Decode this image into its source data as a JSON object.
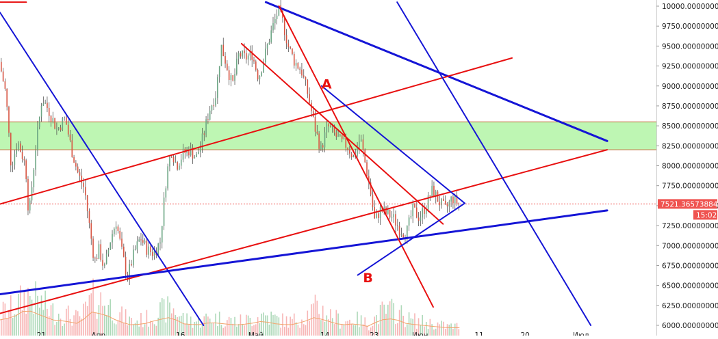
{
  "chart_data": {
    "type": "candlestick",
    "title": "",
    "xlabel": "",
    "ylabel": "",
    "ylim": [
      6000,
      10050
    ],
    "y_ticks": [
      "10000.00000000",
      "9750.00000000",
      "9500.00000000",
      "9250.00000000",
      "9000.00000000",
      "8750.00000000",
      "8500.00000000",
      "8250.00000000",
      "8000.00000000",
      "7750.00000000",
      "7500.00000000",
      "7250.00000000",
      "7000.00000000",
      "6750.00000000",
      "6500.00000000",
      "6250.00000000",
      "6000.00000000"
    ],
    "y_tick_values": [
      10000,
      9750,
      9500,
      9250,
      9000,
      8750,
      8500,
      8250,
      8000,
      7750,
      7500,
      7250,
      7000,
      6750,
      6500,
      6250,
      6000
    ],
    "x_ticks": [
      {
        "label": "21",
        "x": 0.063
      },
      {
        "label": "Апр",
        "x": 0.15
      },
      {
        "label": "16",
        "x": 0.275
      },
      {
        "label": "Май",
        "x": 0.39
      },
      {
        "label": "14",
        "x": 0.495
      },
      {
        "label": "23",
        "x": 0.57
      },
      {
        "label": "Июн",
        "x": 0.64
      },
      {
        "label": "11",
        "x": 0.73
      },
      {
        "label": "20",
        "x": 0.8
      },
      {
        "label": "Июл",
        "x": 0.885
      }
    ],
    "current_price_label": "7521.36573884",
    "current_price": 7521.37,
    "countdown_label": "15:02",
    "zone": {
      "from": 8200,
      "to": 8550,
      "color": "#b3f5a6"
    },
    "annotations": [
      {
        "text": "A",
        "x": 0.49,
        "y": 8970
      },
      {
        "text": "B",
        "x": 0.553,
        "y": 6540
      }
    ],
    "trendlines": [
      {
        "color": "#e81010",
        "points": [
          [
            0.0,
            10050
          ],
          [
            0.04,
            10050
          ]
        ]
      },
      {
        "color": "#1515d6",
        "points": [
          [
            0.0,
            9920
          ],
          [
            0.31,
            6000
          ]
        ]
      },
      {
        "color": "#1515d6",
        "points": [
          [
            0.405,
            10050
          ],
          [
            0.925,
            8310
          ]
        ]
      },
      {
        "color": "#e81010",
        "points": [
          [
            0.0,
            7520
          ],
          [
            0.78,
            9350
          ]
        ]
      },
      {
        "color": "#e81010",
        "points": [
          [
            0.0,
            6150
          ],
          [
            0.925,
            8200
          ]
        ]
      },
      {
        "color": "#1515d6",
        "points": [
          [
            0.0,
            6390
          ],
          [
            0.925,
            7440
          ]
        ]
      },
      {
        "color": "#e81010",
        "points": [
          [
            0.425,
            10000
          ],
          [
            0.66,
            6230
          ]
        ]
      },
      {
        "color": "#e81010",
        "points": [
          [
            0.368,
            9530
          ],
          [
            0.675,
            7270
          ]
        ]
      },
      {
        "color": "#1515d6",
        "points": [
          [
            0.49,
            9000
          ],
          [
            0.708,
            7530
          ]
        ]
      },
      {
        "color": "#1515d6",
        "points": [
          [
            0.545,
            6630
          ],
          [
            0.708,
            7530
          ]
        ]
      },
      {
        "color": "#1515d6",
        "points": [
          [
            0.605,
            10050
          ],
          [
            0.9,
            6000
          ]
        ]
      }
    ],
    "price_path": [
      [
        0.0,
        9300
      ],
      [
        0.01,
        8900
      ],
      [
        0.018,
        8000
      ],
      [
        0.028,
        8300
      ],
      [
        0.04,
        8000
      ],
      [
        0.045,
        7350
      ],
      [
        0.055,
        8200
      ],
      [
        0.065,
        8850
      ],
      [
        0.075,
        8700
      ],
      [
        0.088,
        8450
      ],
      [
        0.1,
        8600
      ],
      [
        0.11,
        8200
      ],
      [
        0.12,
        7900
      ],
      [
        0.13,
        7700
      ],
      [
        0.138,
        7200
      ],
      [
        0.145,
        6800
      ],
      [
        0.152,
        6950
      ],
      [
        0.16,
        6700
      ],
      [
        0.17,
        7100
      ],
      [
        0.178,
        7300
      ],
      [
        0.186,
        6950
      ],
      [
        0.195,
        6600
      ],
      [
        0.205,
        6900
      ],
      [
        0.215,
        7100
      ],
      [
        0.225,
        6950
      ],
      [
        0.235,
        6900
      ],
      [
        0.245,
        7050
      ],
      [
        0.255,
        7900
      ],
      [
        0.262,
        8200
      ],
      [
        0.27,
        8000
      ],
      [
        0.28,
        8150
      ],
      [
        0.29,
        8200
      ],
      [
        0.3,
        8100
      ],
      [
        0.31,
        8350
      ],
      [
        0.32,
        8700
      ],
      [
        0.33,
        8900
      ],
      [
        0.338,
        9500
      ],
      [
        0.345,
        9300
      ],
      [
        0.355,
        9000
      ],
      [
        0.365,
        9400
      ],
      [
        0.375,
        9350
      ],
      [
        0.385,
        9400
      ],
      [
        0.395,
        9100
      ],
      [
        0.405,
        9400
      ],
      [
        0.415,
        9700
      ],
      [
        0.425,
        9950
      ],
      [
        0.432,
        9800
      ],
      [
        0.44,
        9500
      ],
      [
        0.45,
        9300
      ],
      [
        0.46,
        9200
      ],
      [
        0.47,
        8900
      ],
      [
        0.48,
        8500
      ],
      [
        0.49,
        8200
      ],
      [
        0.5,
        8500
      ],
      [
        0.51,
        8400
      ],
      [
        0.52,
        8300
      ],
      [
        0.53,
        8250
      ],
      [
        0.54,
        8100
      ],
      [
        0.55,
        8350
      ],
      [
        0.558,
        8000
      ],
      [
        0.565,
        7700
      ],
      [
        0.572,
        7300
      ],
      [
        0.58,
        7450
      ],
      [
        0.59,
        7400
      ],
      [
        0.6,
        7350
      ],
      [
        0.61,
        7200
      ],
      [
        0.62,
        7150
      ],
      [
        0.63,
        7450
      ],
      [
        0.64,
        7350
      ],
      [
        0.65,
        7500
      ],
      [
        0.66,
        7700
      ],
      [
        0.67,
        7550
      ],
      [
        0.68,
        7450
      ],
      [
        0.69,
        7600
      ],
      [
        0.7,
        7520
      ]
    ],
    "volume_profile": [
      [
        0.0,
        0.5
      ],
      [
        0.02,
        0.6
      ],
      [
        0.04,
        0.9
      ],
      [
        0.06,
        0.7
      ],
      [
        0.08,
        0.5
      ],
      [
        0.1,
        0.45
      ],
      [
        0.12,
        0.35
      ],
      [
        0.14,
        0.8
      ],
      [
        0.16,
        0.7
      ],
      [
        0.18,
        0.45
      ],
      [
        0.2,
        0.3
      ],
      [
        0.22,
        0.35
      ],
      [
        0.24,
        0.5
      ],
      [
        0.26,
        0.6
      ],
      [
        0.28,
        0.35
      ],
      [
        0.3,
        0.3
      ],
      [
        0.32,
        0.4
      ],
      [
        0.34,
        0.35
      ],
      [
        0.36,
        0.3
      ],
      [
        0.38,
        0.35
      ],
      [
        0.4,
        0.45
      ],
      [
        0.42,
        0.35
      ],
      [
        0.44,
        0.3
      ],
      [
        0.46,
        0.4
      ],
      [
        0.48,
        0.6
      ],
      [
        0.5,
        0.45
      ],
      [
        0.52,
        0.3
      ],
      [
        0.54,
        0.35
      ],
      [
        0.56,
        0.25
      ],
      [
        0.58,
        0.5
      ],
      [
        0.6,
        0.55
      ],
      [
        0.62,
        0.35
      ],
      [
        0.64,
        0.3
      ],
      [
        0.66,
        0.25
      ],
      [
        0.68,
        0.2
      ],
      [
        0.7,
        0.2
      ]
    ],
    "colors": {
      "up": "#6ba583",
      "down": "#d75442",
      "candle_wick": "#505050",
      "axis_text": "#222222",
      "price_label_bg": "#ef5350",
      "vol_up": "#9ad0a8",
      "vol_down": "#f5a3a3"
    }
  }
}
